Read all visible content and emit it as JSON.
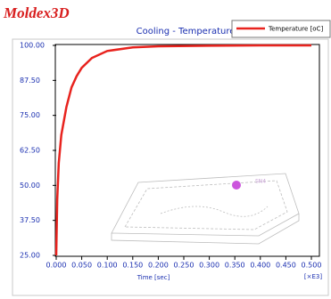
{
  "brand": "Moldex3D",
  "chart_data": {
    "type": "line",
    "title": "Cooling - Temperature",
    "x_label": "Time [sec]",
    "x_scale_label": "[×E3]",
    "annotation": "SN4",
    "x": [
      0,
      0.002,
      0.005,
      0.01,
      0.02,
      0.03,
      0.04,
      0.05,
      0.07,
      0.1,
      0.15,
      0.2,
      0.3,
      0.4,
      0.5
    ],
    "series": [
      {
        "name": "Temperature [oC]",
        "color": "#e8231e",
        "values": [
          25,
          45,
          58,
          68,
          78,
          85,
          89,
          92,
          95.5,
          98,
          99.3,
          99.7,
          99.9,
          100,
          100
        ]
      }
    ],
    "xlim": [
      0,
      0.5
    ],
    "xticks": [
      {
        "value": 0,
        "label": "0.000"
      },
      {
        "value": 0.05,
        "label": "0.050"
      },
      {
        "value": 0.1,
        "label": "0.100"
      },
      {
        "value": 0.15,
        "label": "0.150"
      },
      {
        "value": 0.2,
        "label": "0.200"
      },
      {
        "value": 0.25,
        "label": "0.250"
      },
      {
        "value": 0.3,
        "label": "0.300"
      },
      {
        "value": 0.35,
        "label": "0.350"
      },
      {
        "value": 0.4,
        "label": "0.400"
      },
      {
        "value": 0.45,
        "label": "0.450"
      },
      {
        "value": 0.5,
        "label": "0.500"
      }
    ],
    "ylim": [
      25,
      100
    ],
    "yticks": [
      {
        "value": 25,
        "label": "25.00"
      },
      {
        "value": 37.5,
        "label": "37.50"
      },
      {
        "value": 50,
        "label": "50.00"
      },
      {
        "value": 62.5,
        "label": "62.50"
      },
      {
        "value": 75,
        "label": "75.00"
      },
      {
        "value": 87.5,
        "label": "87.50"
      },
      {
        "value": 100,
        "label": "100.00"
      }
    ],
    "legend": "top-right"
  }
}
